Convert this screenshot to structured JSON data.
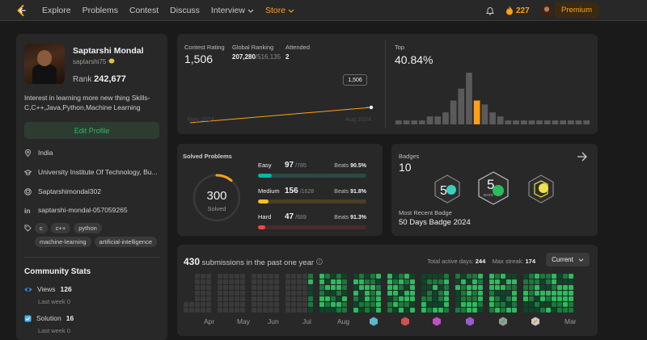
{
  "nav": {
    "links": [
      {
        "label": "Explore"
      },
      {
        "label": "Problems"
      },
      {
        "label": "Contest"
      },
      {
        "label": "Discuss"
      },
      {
        "label": "Interview"
      },
      {
        "label": "Store"
      }
    ],
    "streak": "227",
    "premium_label": "Premium"
  },
  "profile": {
    "name": "Saptarshi Mondal",
    "handle": "saptarshi75",
    "rank_label": "Rank",
    "rank": "242,677",
    "bio": "Interest in learning more new thing Skills-C,C++,Java,Python,Machine Learning",
    "edit_label": "Edit Profile",
    "location": "India",
    "school": "University Institute Of Technology, Bu...",
    "github": "Saptarshimondal302",
    "linkedin": "saptarshi-mondal-057059265",
    "tags": [
      "c",
      "c++",
      "python",
      "machine-learning",
      "artificial-intelligence"
    ]
  },
  "community": {
    "title": "Community Stats",
    "views_label": "Views",
    "views": "126",
    "views_sub": "Last week 0",
    "solution_label": "Solution",
    "solution": "16",
    "solution_sub": "Last week 0"
  },
  "contest": {
    "rating_label": "Contest Rating",
    "rating": "1,506",
    "global_label": "Global Ranking",
    "global_rank": "207,280",
    "global_total": "/516,135",
    "attended_label": "Attended",
    "attended": "2",
    "top_label": "Top",
    "top_pct": "40.84%",
    "tooltip": "1,506",
    "date_start": "May 2024",
    "date_end": "Aug 2024",
    "line_points": [
      1480,
      1506
    ]
  },
  "histogram": {
    "values": [
      1,
      1,
      1,
      1,
      2,
      2,
      3,
      6,
      9,
      13,
      6,
      5,
      3,
      2,
      1,
      1,
      1,
      1,
      1,
      1,
      1,
      1,
      1,
      1,
      1
    ],
    "highlight_index": 10,
    "color": "#5a5a5a",
    "highlight_color": "#ffa116"
  },
  "solved": {
    "title": "Solved Problems",
    "total": "300",
    "total_label": "Solved",
    "easy": {
      "label": "Easy",
      "count": "97",
      "total": "/785",
      "beats_label": "Beats",
      "beats": "90.5%",
      "ratio": 0.124,
      "color": "#00b8a3",
      "bg": "#2a4a45"
    },
    "medium": {
      "label": "Medium",
      "count": "156",
      "total": "/1628",
      "beats_label": "Beats",
      "beats": "91.8%",
      "ratio": 0.096,
      "color": "#ffc01e",
      "bg": "#4a4020"
    },
    "hard": {
      "label": "Hard",
      "count": "47",
      "total": "/689",
      "beats_label": "Beats",
      "beats": "91.3%",
      "ratio": 0.068,
      "color": "#ef4743",
      "bg": "#4a2a2a"
    }
  },
  "badges": {
    "title": "Badges",
    "count": "10",
    "recent_label": "Most Recent Badge",
    "recent_name": "50 Days Badge 2024",
    "badge_text": "DAYS"
  },
  "submissions": {
    "count": "430",
    "title": "submissions in the past one year",
    "active_label": "Total active days:",
    "active_days": "244",
    "streak_label": "Max streak:",
    "max_streak": "174",
    "selector": "Current",
    "months": [
      "Apr",
      "May",
      "Jun",
      "Jul",
      "Aug",
      "Mar"
    ]
  }
}
